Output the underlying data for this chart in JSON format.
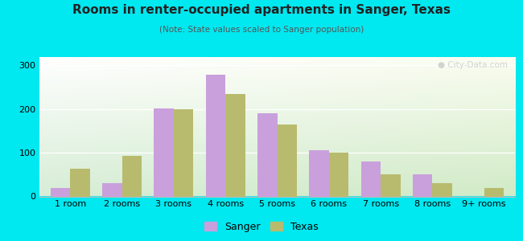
{
  "title": "Rooms in renter-occupied apartments in Sanger, Texas",
  "subtitle": "(Note: State values scaled to Sanger population)",
  "categories": [
    "1 room",
    "2 rooms",
    "3 rooms",
    "4 rooms",
    "5 rooms",
    "6 rooms",
    "7 rooms",
    "8 rooms",
    "9+ rooms"
  ],
  "sanger_values": [
    20,
    30,
    202,
    278,
    190,
    105,
    80,
    50,
    0
  ],
  "texas_values": [
    63,
    93,
    200,
    235,
    165,
    100,
    50,
    30,
    20
  ],
  "sanger_color": "#c9a0dc",
  "texas_color": "#b8bb6e",
  "background_outer": "#00e8f0",
  "ylim": [
    0,
    320
  ],
  "yticks": [
    0,
    100,
    200,
    300
  ],
  "bar_width": 0.38,
  "figsize": [
    6.5,
    3.0
  ],
  "dpi": 100
}
